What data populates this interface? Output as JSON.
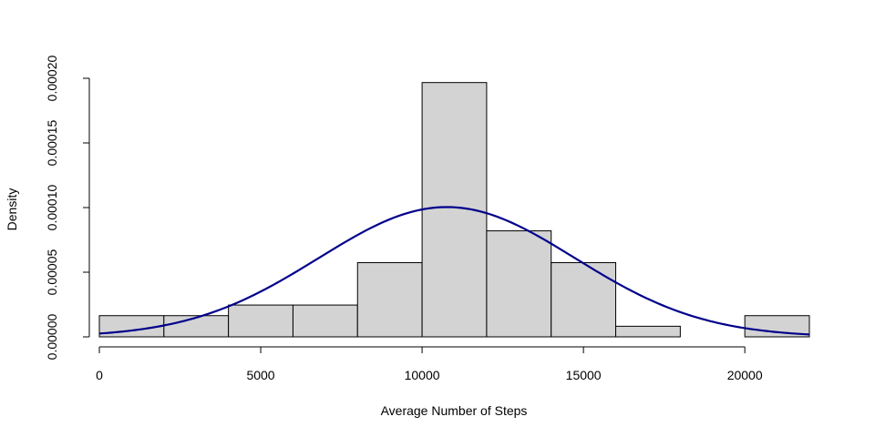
{
  "chart_data": {
    "type": "bar",
    "title": "",
    "xlabel": "Average Number of Steps",
    "ylabel": "Density",
    "xlim": [
      0,
      22000
    ],
    "ylim": [
      0,
      0.0002
    ],
    "bins": [
      {
        "x0": 0,
        "x1": 2000,
        "density": 1.64e-05
      },
      {
        "x0": 2000,
        "x1": 4000,
        "density": 1.64e-05
      },
      {
        "x0": 4000,
        "x1": 6000,
        "density": 2.46e-05
      },
      {
        "x0": 6000,
        "x1": 8000,
        "density": 2.46e-05
      },
      {
        "x0": 8000,
        "x1": 10000,
        "density": 5.74e-05
      },
      {
        "x0": 10000,
        "x1": 12000,
        "density": 0.0001967
      },
      {
        "x0": 12000,
        "x1": 14000,
        "density": 8.2e-05
      },
      {
        "x0": 14000,
        "x1": 16000,
        "density": 5.74e-05
      },
      {
        "x0": 16000,
        "x1": 18000,
        "density": 8.2e-06
      },
      {
        "x0": 18000,
        "x1": 20000,
        "density": 0
      },
      {
        "x0": 20000,
        "x1": 22000,
        "density": 1.64e-05
      }
    ],
    "x_ticks": [
      {
        "value": 0,
        "label": "0"
      },
      {
        "value": 5000,
        "label": "5000"
      },
      {
        "value": 10000,
        "label": "10000"
      },
      {
        "value": 15000,
        "label": "15000"
      },
      {
        "value": 20000,
        "label": "20000"
      }
    ],
    "y_ticks": [
      {
        "value": 0,
        "label": "0.00000"
      },
      {
        "value": 5e-05,
        "label": "0.00005"
      },
      {
        "value": 0.0001,
        "label": "0.00010"
      },
      {
        "value": 0.00015,
        "label": "0.00015"
      },
      {
        "value": 0.0002,
        "label": "0.00020"
      }
    ],
    "density_curve": {
      "kind": "normal",
      "mean": 10766,
      "sd": 3974,
      "x_from": 0,
      "x_to": 22000
    },
    "grid": false,
    "colors": {
      "bar_fill": "#d3d3d3",
      "bar_stroke": "#000000",
      "curve": "#00008b",
      "axis": "#000000"
    }
  }
}
